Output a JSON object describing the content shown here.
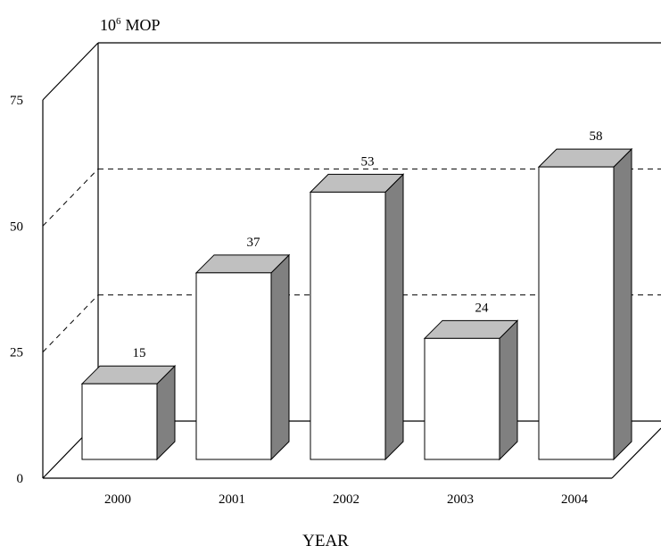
{
  "chart_data": {
    "type": "bar",
    "categories": [
      "2000",
      "2001",
      "2002",
      "2003",
      "2004"
    ],
    "values": [
      15,
      37,
      53,
      24,
      58
    ],
    "data_labels": [
      "15",
      "37",
      "53",
      "24",
      "58"
    ],
    "ylabel_base": "10",
    "ylabel_sup": "6",
    "ylabel_unit": "MOP",
    "xlabel": "YEAR",
    "yticks": [
      "0",
      "25",
      "50",
      "75"
    ],
    "ylim": [
      0,
      75
    ],
    "grid": true,
    "style": "3d",
    "colors": {
      "front": "#ffffff",
      "top": "#c0c0c0",
      "side": "#808080",
      "stroke": "#000000"
    }
  }
}
